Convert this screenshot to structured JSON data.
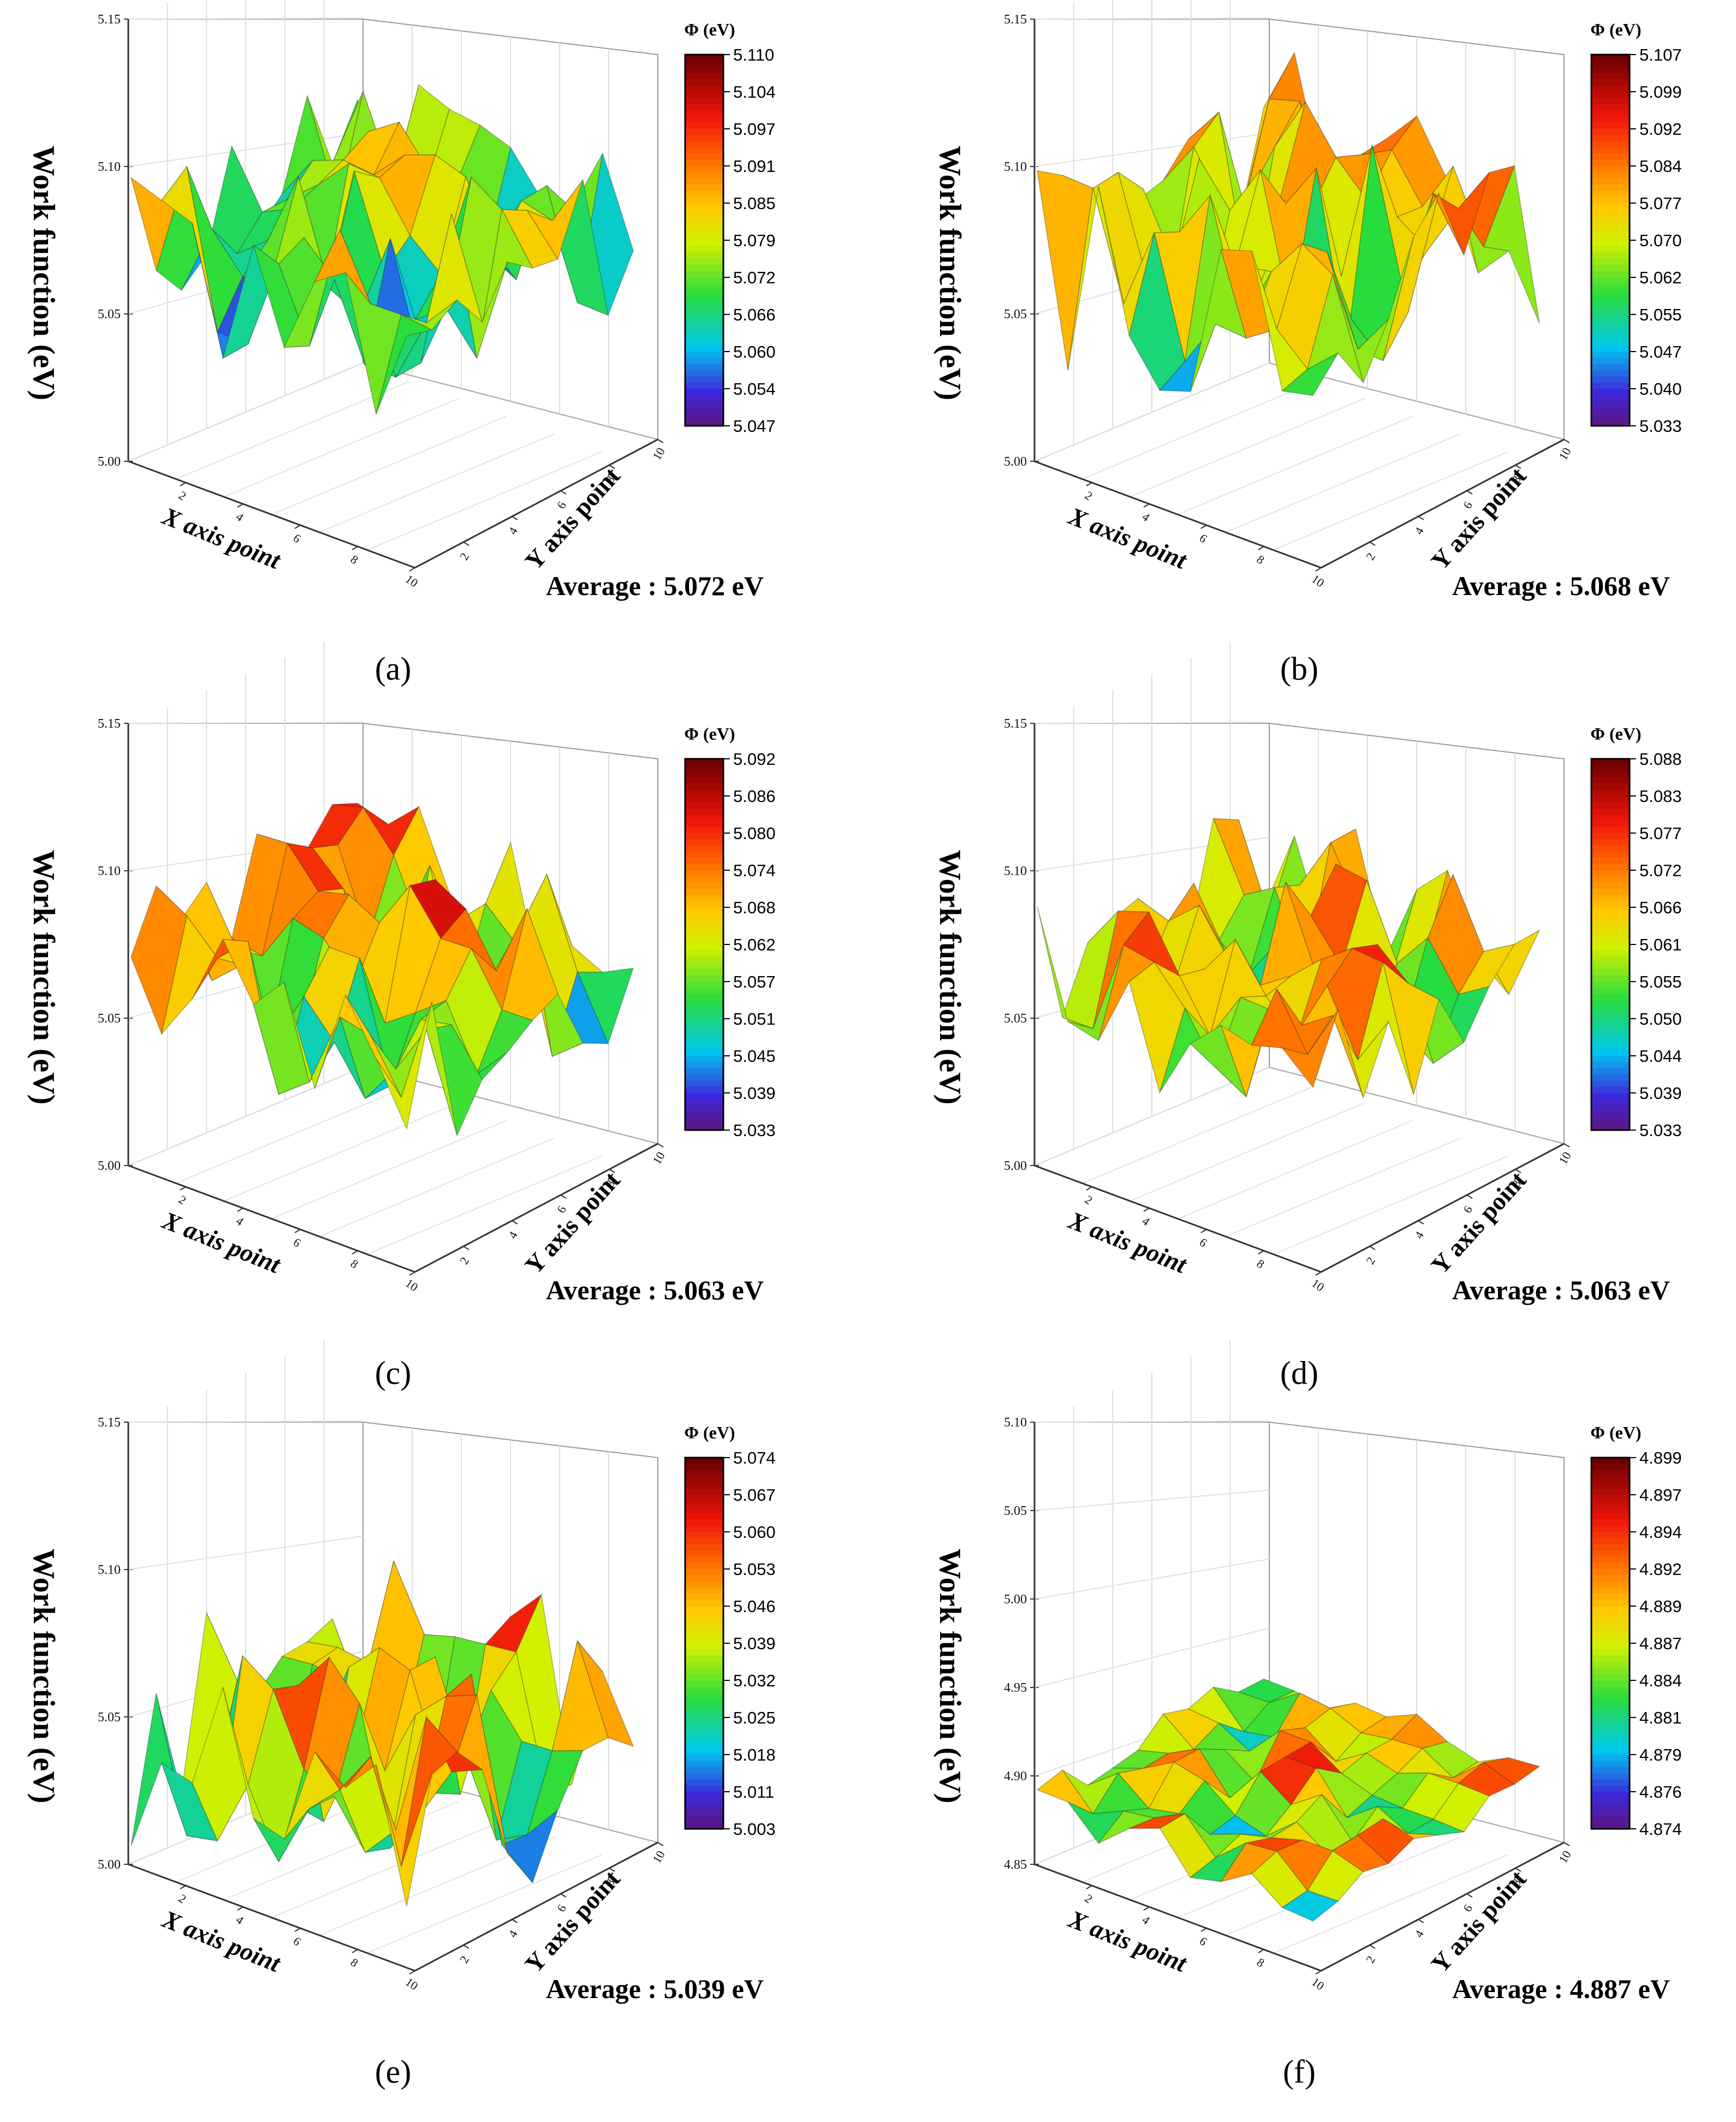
{
  "figure": {
    "xlabel": "X axis point",
    "ylabel": "Y axis point",
    "zlabel": "Work function (eV)",
    "colorbar_title": "Φ (eV)"
  },
  "chart_data": [
    {
      "panel": "(a)",
      "type": "surface3d",
      "title": "",
      "xlabel": "X axis point",
      "ylabel": "Y axis point",
      "zlabel": "Work function (eV)",
      "x_ticks": [
        "2",
        "4",
        "6",
        "8",
        "10"
      ],
      "y_ticks": [
        "2",
        "4",
        "6",
        "8",
        "10"
      ],
      "z_ticks": [
        "5.00",
        "5.05",
        "5.10",
        "5.15"
      ],
      "zlim": [
        5.0,
        5.15
      ],
      "colorbar": {
        "title": "Φ (eV)",
        "ticks": [
          "5.110",
          "5.104",
          "5.097",
          "5.091",
          "5.085",
          "5.079",
          "5.072",
          "5.066",
          "5.060",
          "5.054",
          "5.047"
        ],
        "range": [
          5.047,
          5.11
        ]
      },
      "summary": {
        "min": 5.047,
        "max": 5.11,
        "mean": 5.072
      },
      "seed": 11,
      "average_label": "Average : 5.072 eV"
    },
    {
      "panel": "(b)",
      "type": "surface3d",
      "title": "",
      "xlabel": "X axis point",
      "ylabel": "Y axis point",
      "zlabel": "Work function (eV)",
      "x_ticks": [
        "2",
        "4",
        "6",
        "8",
        "10"
      ],
      "y_ticks": [
        "2",
        "4",
        "6",
        "8",
        "10"
      ],
      "z_ticks": [
        "5.00",
        "5.05",
        "5.10",
        "5.15"
      ],
      "zlim": [
        5.0,
        5.15
      ],
      "colorbar": {
        "title": "Φ (eV)",
        "ticks": [
          "5.107",
          "5.099",
          "5.092",
          "5.084",
          "5.077",
          "5.070",
          "5.062",
          "5.055",
          "5.047",
          "5.040",
          "5.033"
        ],
        "range": [
          5.033,
          5.107
        ]
      },
      "summary": {
        "min": 5.033,
        "max": 5.107,
        "mean": 5.068
      },
      "seed": 23,
      "average_label": "Average : 5.068 eV"
    },
    {
      "panel": "(c)",
      "type": "surface3d",
      "title": "",
      "xlabel": "X axis point",
      "ylabel": "Y axis point",
      "zlabel": "Work function (eV)",
      "x_ticks": [
        "2",
        "4",
        "6",
        "8",
        "10"
      ],
      "y_ticks": [
        "2",
        "4",
        "6",
        "8",
        "10"
      ],
      "z_ticks": [
        "5.00",
        "5.05",
        "5.10",
        "5.15"
      ],
      "zlim": [
        5.0,
        5.15
      ],
      "colorbar": {
        "title": "Φ (eV)",
        "ticks": [
          "5.092",
          "5.086",
          "5.080",
          "5.074",
          "5.068",
          "5.062",
          "5.057",
          "5.051",
          "5.045",
          "5.039",
          "5.033"
        ],
        "range": [
          5.033,
          5.092
        ]
      },
      "summary": {
        "min": 5.033,
        "max": 5.092,
        "mean": 5.063
      },
      "seed": 37,
      "average_label": "Average : 5.063 eV"
    },
    {
      "panel": "(d)",
      "type": "surface3d",
      "title": "",
      "xlabel": "X axis point",
      "ylabel": "Y axis point",
      "zlabel": "Work function (eV)",
      "x_ticks": [
        "2",
        "4",
        "6",
        "8",
        "10"
      ],
      "y_ticks": [
        "2",
        "4",
        "6",
        "8",
        "10"
      ],
      "z_ticks": [
        "5.00",
        "5.05",
        "5.10",
        "5.15"
      ],
      "zlim": [
        5.0,
        5.15
      ],
      "colorbar": {
        "title": "Φ (eV)",
        "ticks": [
          "5.088",
          "5.083",
          "5.077",
          "5.072",
          "5.066",
          "5.061",
          "5.055",
          "5.050",
          "5.044",
          "5.039",
          "5.033"
        ],
        "range": [
          5.033,
          5.088
        ]
      },
      "summary": {
        "min": 5.033,
        "max": 5.088,
        "mean": 5.063
      },
      "seed": 41,
      "average_label": "Average : 5.063 eV"
    },
    {
      "panel": "(e)",
      "type": "surface3d",
      "title": "",
      "xlabel": "X axis point",
      "ylabel": "Y axis point",
      "zlabel": "Work function (eV)",
      "x_ticks": [
        "2",
        "4",
        "6",
        "8",
        "10"
      ],
      "y_ticks": [
        "2",
        "4",
        "6",
        "8",
        "10"
      ],
      "z_ticks": [
        "5.00",
        "5.05",
        "5.10",
        "5.15"
      ],
      "zlim": [
        5.0,
        5.15
      ],
      "colorbar": {
        "title": "Φ (eV)",
        "ticks": [
          "5.074",
          "5.067",
          "5.060",
          "5.053",
          "5.046",
          "5.039",
          "5.032",
          "5.025",
          "5.018",
          "5.011",
          "5.003"
        ],
        "range": [
          5.003,
          5.074
        ]
      },
      "summary": {
        "min": 5.003,
        "max": 5.074,
        "mean": 5.039
      },
      "seed": 53,
      "average_label": "Average : 5.039 eV"
    },
    {
      "panel": "(f)",
      "type": "surface3d",
      "title": "",
      "xlabel": "X axis point",
      "ylabel": "Y axis point",
      "zlabel": "Work function (eV)",
      "x_ticks": [
        "2",
        "4",
        "6",
        "8",
        "10"
      ],
      "y_ticks": [
        "2",
        "4",
        "6",
        "8",
        "10"
      ],
      "z_ticks": [
        "4.85",
        "4.90",
        "4.95",
        "5.00",
        "5.05",
        "5.10"
      ],
      "zlim": [
        4.85,
        5.1
      ],
      "colorbar": {
        "title": "Φ (eV)",
        "ticks": [
          "4.899",
          "4.897",
          "4.894",
          "4.892",
          "4.889",
          "4.887",
          "4.884",
          "4.881",
          "4.879",
          "4.876",
          "4.874"
        ],
        "range": [
          4.874,
          4.899
        ]
      },
      "summary": {
        "min": 4.874,
        "max": 4.899,
        "mean": 4.887
      },
      "seed": 67,
      "average_label": "Average : 4.887 eV"
    }
  ]
}
